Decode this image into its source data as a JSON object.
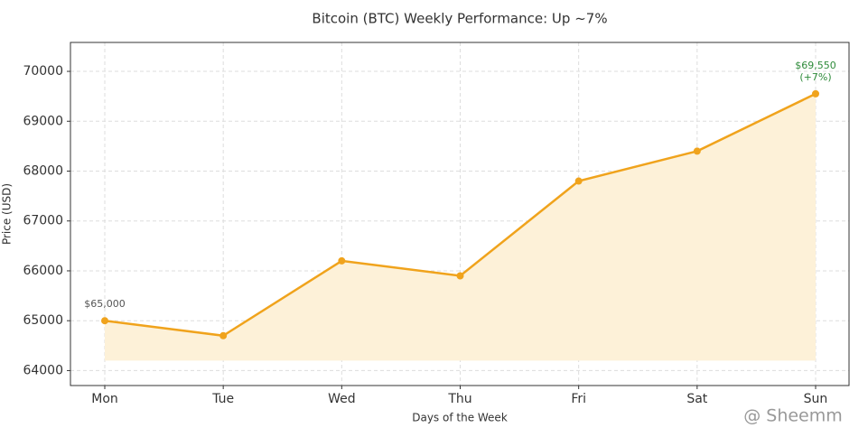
{
  "chart_data": {
    "type": "line",
    "title": "Bitcoin (BTC) Weekly Performance: Up ~7%",
    "x_label": "Days of the Week",
    "y_label": "Price (USD)",
    "categories": [
      "Mon",
      "Tue",
      "Wed",
      "Thu",
      "Fri",
      "Sat",
      "Sun"
    ],
    "series": [
      {
        "name": "BTC",
        "color": "#f0a31c",
        "values": [
          65000,
          64700,
          66200,
          65900,
          67800,
          68400,
          69550
        ]
      }
    ],
    "fill_base": 64200,
    "fill_color": "#fdf1d8",
    "ylim": [
      63700,
      70580
    ],
    "yticks": [
      64000,
      65000,
      66000,
      67000,
      68000,
      69000,
      70000
    ],
    "grid": true,
    "annotations": [
      {
        "index": 0,
        "color": "#555555",
        "lines": [
          "$65,000"
        ]
      },
      {
        "index": 6,
        "color": "#2e8b3a",
        "lines": [
          "$69,550",
          "(+7%)"
        ]
      }
    ],
    "watermark": "@ Sheemm"
  }
}
